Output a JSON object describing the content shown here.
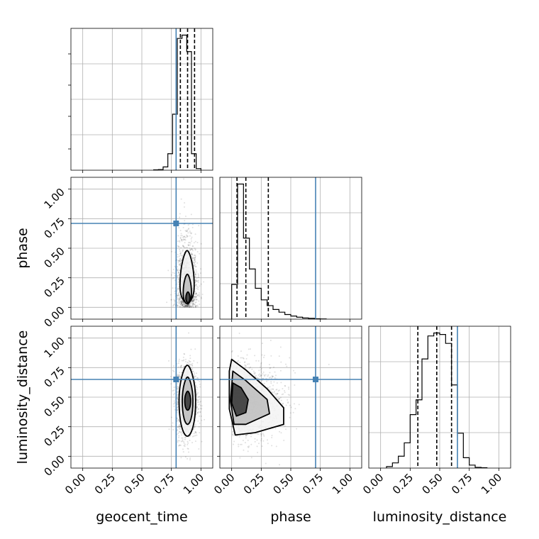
{
  "chart_data": {
    "type": "corner",
    "parameters": [
      "geocent_time",
      "phase",
      "luminosity_distance"
    ],
    "tick_labels": [
      "0.00",
      "0.25",
      "0.50",
      "0.75",
      "1.00"
    ],
    "tick_values": [
      0,
      0.25,
      0.5,
      0.75,
      1.0
    ],
    "axis_range": [
      -0.1,
      1.1
    ],
    "truths": {
      "geocent_time": 0.79,
      "phase": 0.71,
      "luminosity_distance": 0.65
    },
    "truth_color": "#4682b4",
    "grid": true,
    "marginals": [
      {
        "parameter": "geocent_time",
        "bin_edges": [
          0.6,
          0.64,
          0.68,
          0.72,
          0.76,
          0.8,
          0.84,
          0.88,
          0.92,
          0.96,
          1.0
        ],
        "counts": [
          0.01,
          0.02,
          0.1,
          0.5,
          1.7,
          4.0,
          4.1,
          3.6,
          0.5,
          0.05
        ],
        "quantiles": [
          0.826,
          0.887,
          0.946
        ]
      },
      {
        "parameter": "phase",
        "bin_edges": [
          0.0,
          0.05,
          0.1,
          0.15,
          0.2,
          0.25,
          0.3,
          0.35,
          0.4,
          0.45,
          0.5,
          0.55,
          0.6,
          0.65,
          0.7,
          0.75,
          0.8
        ],
        "counts": [
          0.9,
          3.5,
          2.1,
          1.3,
          0.8,
          0.5,
          0.35,
          0.25,
          0.18,
          0.12,
          0.08,
          0.05,
          0.03,
          0.02,
          0.01,
          0.005
        ],
        "quantiles": [
          0.045,
          0.12,
          0.31
        ]
      },
      {
        "parameter": "luminosity_distance",
        "bin_edges": [
          0.05,
          0.1,
          0.15,
          0.2,
          0.25,
          0.3,
          0.35,
          0.4,
          0.45,
          0.5,
          0.55,
          0.6,
          0.65,
          0.7,
          0.75,
          0.8,
          0.85,
          0.9
        ],
        "counts": [
          0.02,
          0.07,
          0.16,
          0.34,
          0.72,
          0.92,
          1.47,
          1.78,
          1.82,
          1.8,
          1.68,
          1.12,
          0.47,
          0.14,
          0.04,
          0.01,
          0.005
        ],
        "quantiles": [
          0.315,
          0.475,
          0.6
        ]
      }
    ],
    "joint": [
      {
        "x": "geocent_time",
        "y": "phase",
        "scatter_center": [
          0.88,
          0.28
        ],
        "scatter_spread": [
          0.045,
          0.3
        ],
        "contours": [
          {
            "level": "outer",
            "cx": 0.883,
            "cy": 0.18,
            "rx": 0.06,
            "ry_up": 0.3,
            "ry_down": 0.14
          },
          {
            "level": "middle",
            "cx": 0.885,
            "cy": 0.12,
            "rx": 0.035,
            "ry_up": 0.16,
            "ry_down": 0.09
          },
          {
            "level": "inner",
            "cx": 0.89,
            "cy": 0.08,
            "rx": 0.018,
            "ry_up": 0.05,
            "ry_down": 0.04
          }
        ]
      },
      {
        "x": "geocent_time",
        "y": "luminosity_distance",
        "scatter_center": [
          0.88,
          0.47
        ],
        "scatter_spread": [
          0.045,
          0.16
        ],
        "contours": [
          {
            "level": "outer",
            "cx": 0.885,
            "cy": 0.47,
            "rx": 0.07,
            "ry_up": 0.3,
            "ry_down": 0.3
          },
          {
            "level": "middle",
            "cx": 0.887,
            "cy": 0.47,
            "rx": 0.045,
            "ry_up": 0.2,
            "ry_down": 0.2
          },
          {
            "level": "inner",
            "cx": 0.888,
            "cy": 0.47,
            "rx": 0.025,
            "ry_up": 0.08,
            "ry_down": 0.08
          }
        ]
      },
      {
        "x": "phase",
        "y": "luminosity_distance",
        "scatter_center": [
          0.2,
          0.47
        ],
        "scatter_spread": [
          0.16,
          0.16
        ],
        "contours": [
          {
            "level": "outer",
            "polygon": [
              [
                0.0,
                0.82
              ],
              [
                0.12,
                0.73
              ],
              [
                0.3,
                0.57
              ],
              [
                0.44,
                0.41
              ],
              [
                0.44,
                0.27
              ],
              [
                0.2,
                0.2
              ],
              [
                0.03,
                0.18
              ],
              [
                -0.02,
                0.4
              ],
              [
                -0.02,
                0.72
              ]
            ]
          },
          {
            "level": "middle",
            "polygon": [
              [
                0.01,
                0.72
              ],
              [
                0.12,
                0.64
              ],
              [
                0.3,
                0.48
              ],
              [
                0.32,
                0.36
              ],
              [
                0.12,
                0.27
              ],
              [
                0.02,
                0.27
              ],
              [
                -0.01,
                0.47
              ]
            ]
          },
          {
            "level": "inner",
            "polygon": [
              [
                0.01,
                0.62
              ],
              [
                0.08,
                0.58
              ],
              [
                0.14,
                0.48
              ],
              [
                0.12,
                0.37
              ],
              [
                0.04,
                0.34
              ],
              [
                0.0,
                0.45
              ]
            ]
          }
        ]
      }
    ]
  }
}
